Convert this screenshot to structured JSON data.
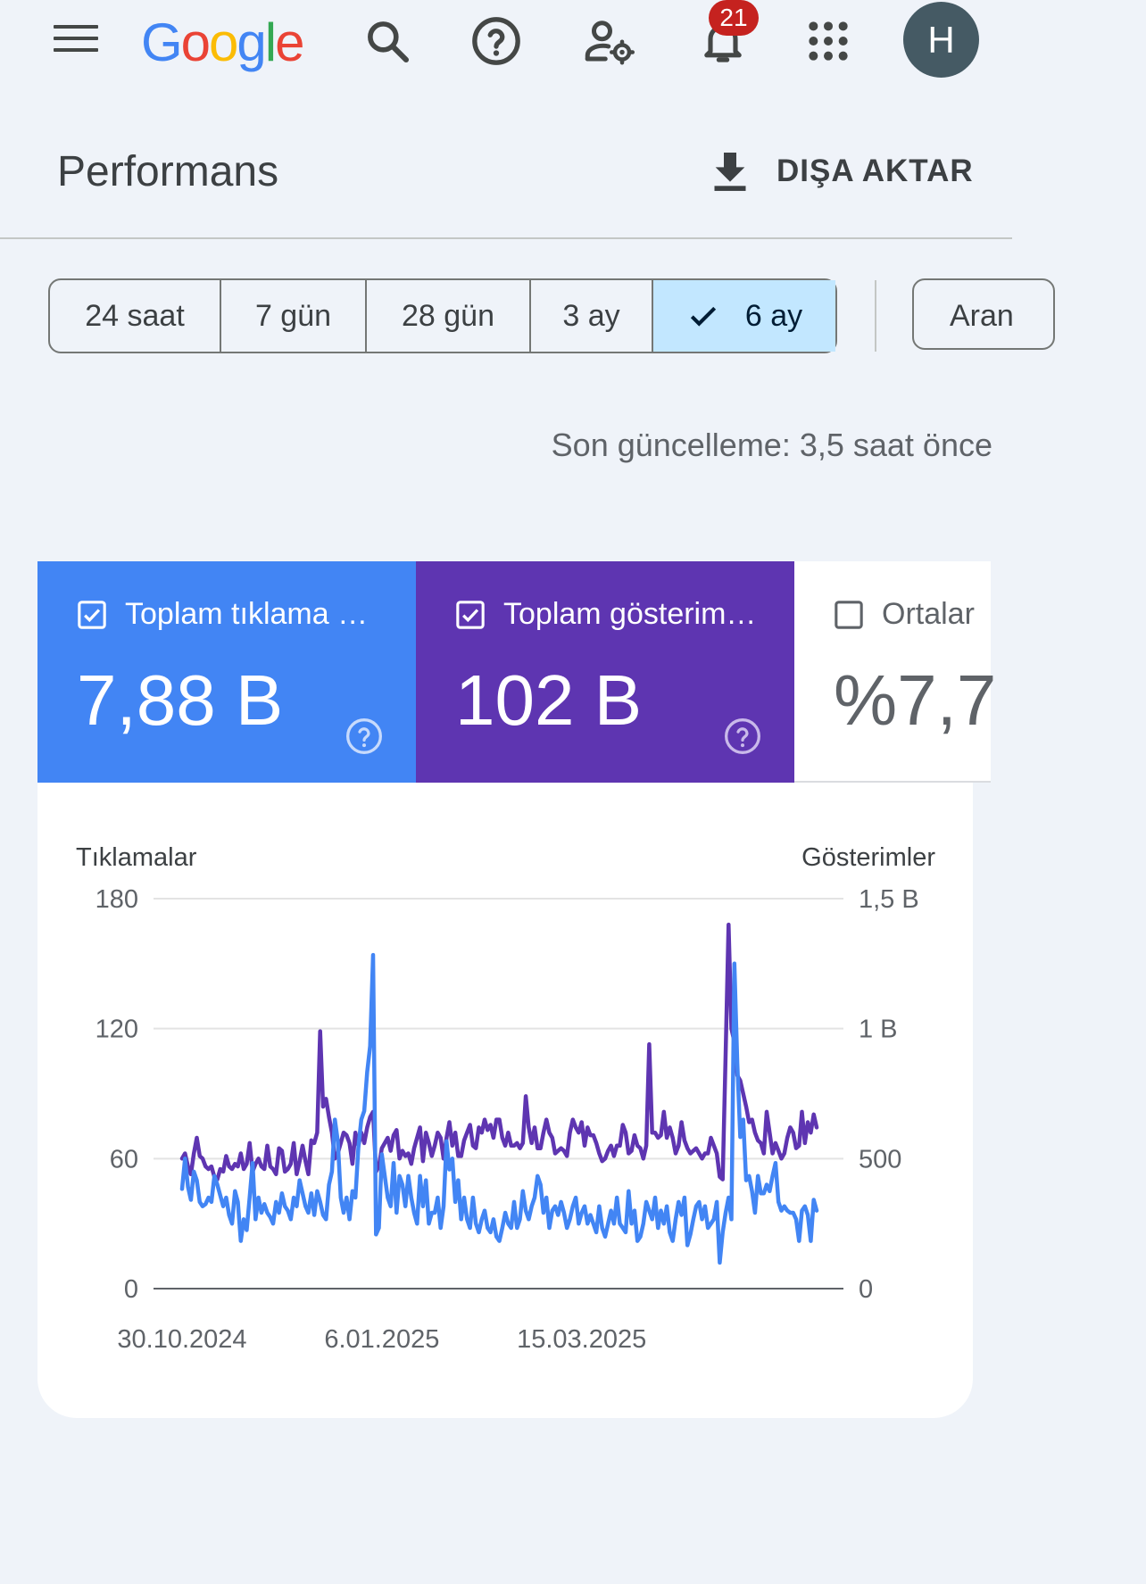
{
  "header": {
    "logo_text": "Google",
    "notification_count": "21",
    "avatar_initial": "H",
    "icons": [
      "menu-icon",
      "search-icon",
      "help-icon",
      "admin-settings-icon",
      "notifications-icon",
      "apps-grid-icon"
    ]
  },
  "page": {
    "title": "Performans",
    "export_label": "DIŞA AKTAR",
    "updated": "Son güncelleme: 3,5 saat önce"
  },
  "date_ranges": [
    {
      "label": "24 saat",
      "selected": false
    },
    {
      "label": "7 gün",
      "selected": false
    },
    {
      "label": "28 gün",
      "selected": false
    },
    {
      "label": "3 ay",
      "selected": false
    },
    {
      "label": "6 ay",
      "selected": true
    }
  ],
  "search_chip_label": "Aran",
  "metrics": {
    "clicks": {
      "label": "Toplam tıklama …",
      "value": "7,88 B",
      "checked": true,
      "color": "#4285f4"
    },
    "impressions": {
      "label": "Toplam gösterim…",
      "value": "102 B",
      "checked": true,
      "color": "#5e35b1"
    },
    "ctr": {
      "label": "Ortalar",
      "value": "%7,7",
      "checked": false
    }
  },
  "chart_data": {
    "type": "line",
    "left_axis": {
      "title": "Tıklamalar",
      "ticks": [
        "0",
        "60",
        "120",
        "180"
      ],
      "range": [
        0,
        180
      ]
    },
    "right_axis": {
      "title": "Gösterimler",
      "ticks": [
        "0",
        "500",
        "1 B",
        "1,5 B"
      ],
      "range": [
        0,
        1500
      ]
    },
    "x_axis": {
      "tick_labels": [
        "30.10.2024",
        "6.01.2025",
        "15.03.2025"
      ],
      "tick_indices": [
        0,
        68,
        136
      ]
    },
    "series": [
      {
        "axis": "left",
        "color": "#4285f4",
        "values": [
          46,
          60,
          47,
          41,
          54,
          50,
          40,
          38,
          39,
          42,
          40,
          52,
          48,
          43,
          38,
          42,
          34,
          30,
          45,
          40,
          22,
          32,
          27,
          42,
          58,
          32,
          42,
          35,
          39,
          35,
          33,
          30,
          40,
          35,
          44,
          38,
          36,
          32,
          42,
          38,
          50,
          44,
          38,
          35,
          44,
          34,
          45,
          40,
          34,
          32,
          48,
          54,
          78,
          68,
          42,
          35,
          42,
          32,
          45,
          42,
          65,
          78,
          82,
          100,
          112,
          154,
          25,
          28,
          62,
          52,
          42,
          38,
          58,
          35,
          52,
          48,
          38,
          52,
          42,
          35,
          30,
          52,
          38,
          50,
          30,
          35,
          35,
          42,
          28,
          38,
          68,
          55,
          60,
          40,
          50,
          32,
          42,
          32,
          28,
          42,
          30,
          26,
          32,
          36,
          28,
          26,
          32,
          24,
          22,
          28,
          35,
          30,
          28,
          40,
          28,
          32,
          45,
          36,
          32,
          38,
          42,
          52,
          48,
          35,
          42,
          28,
          36,
          38,
          34,
          40,
          35,
          28,
          32,
          38,
          42,
          30,
          35,
          38,
          30,
          34,
          30,
          26,
          38,
          28,
          24,
          30,
          36,
          30,
          42,
          30,
          28,
          26,
          45,
          30,
          36,
          22,
          24,
          30,
          40,
          36,
          32,
          42,
          28,
          36,
          30,
          38,
          26,
          22,
          32,
          40,
          34,
          42,
          20,
          25,
          32,
          38,
          40,
          32,
          38,
          28,
          30,
          32,
          40,
          12,
          26,
          35,
          42,
          32,
          150,
          104,
          70,
          78,
          50,
          52,
          45,
          35,
          52,
          44,
          44,
          48,
          45,
          52,
          58,
          40,
          36,
          38,
          36,
          35,
          35,
          32,
          22,
          36,
          38,
          34,
          22,
          41,
          36
        ]
      },
      {
        "axis": "right",
        "color": "#5e35b1",
        "values": [
          500,
          520,
          470,
          440,
          520,
          580,
          510,
          500,
          470,
          460,
          470,
          430,
          420,
          460,
          450,
          510,
          470,
          460,
          480,
          470,
          520,
          460,
          480,
          560,
          450,
          480,
          500,
          470,
          460,
          550,
          470,
          460,
          440,
          540,
          530,
          450,
          460,
          480,
          560,
          440,
          490,
          550,
          490,
          440,
          570,
          560,
          600,
          990,
          700,
          730,
          660,
          600,
          500,
          520,
          560,
          600,
          590,
          560,
          480,
          600,
          550,
          600,
          560,
          620,
          660,
          680,
          450,
          470,
          540,
          560,
          580,
          530,
          590,
          610,
          500,
          530,
          510,
          520,
          480,
          540,
          580,
          620,
          490,
          600,
          560,
          510,
          550,
          600,
          580,
          500,
          580,
          640,
          550,
          600,
          510,
          510,
          570,
          600,
          630,
          550,
          540,
          620,
          600,
          650,
          610,
          630,
          580,
          650,
          650,
          580,
          550,
          600,
          550,
          550,
          560,
          540,
          560,
          740,
          620,
          560,
          620,
          540,
          540,
          600,
          650,
          600,
          580,
          520,
          530,
          540,
          530,
          510,
          600,
          650,
          620,
          600,
          640,
          550,
          620,
          590,
          590,
          560,
          520,
          490,
          500,
          530,
          550,
          510,
          550,
          550,
          630,
          600,
          520,
          530,
          590,
          550,
          540,
          500,
          550,
          940,
          600,
          600,
          580,
          590,
          680,
          580,
          620,
          580,
          520,
          550,
          640,
          570,
          540,
          520,
          530,
          540,
          520,
          500,
          520,
          520,
          580,
          550,
          520,
          430,
          420,
          900,
          1400,
          1000,
          950,
          820,
          800,
          750,
          700,
          640,
          650,
          600,
          570,
          560,
          520,
          680,
          600,
          520,
          560,
          530,
          500,
          520,
          580,
          620,
          600,
          540,
          550,
          680,
          560,
          640,
          600,
          670,
          620
        ]
      }
    ]
  }
}
